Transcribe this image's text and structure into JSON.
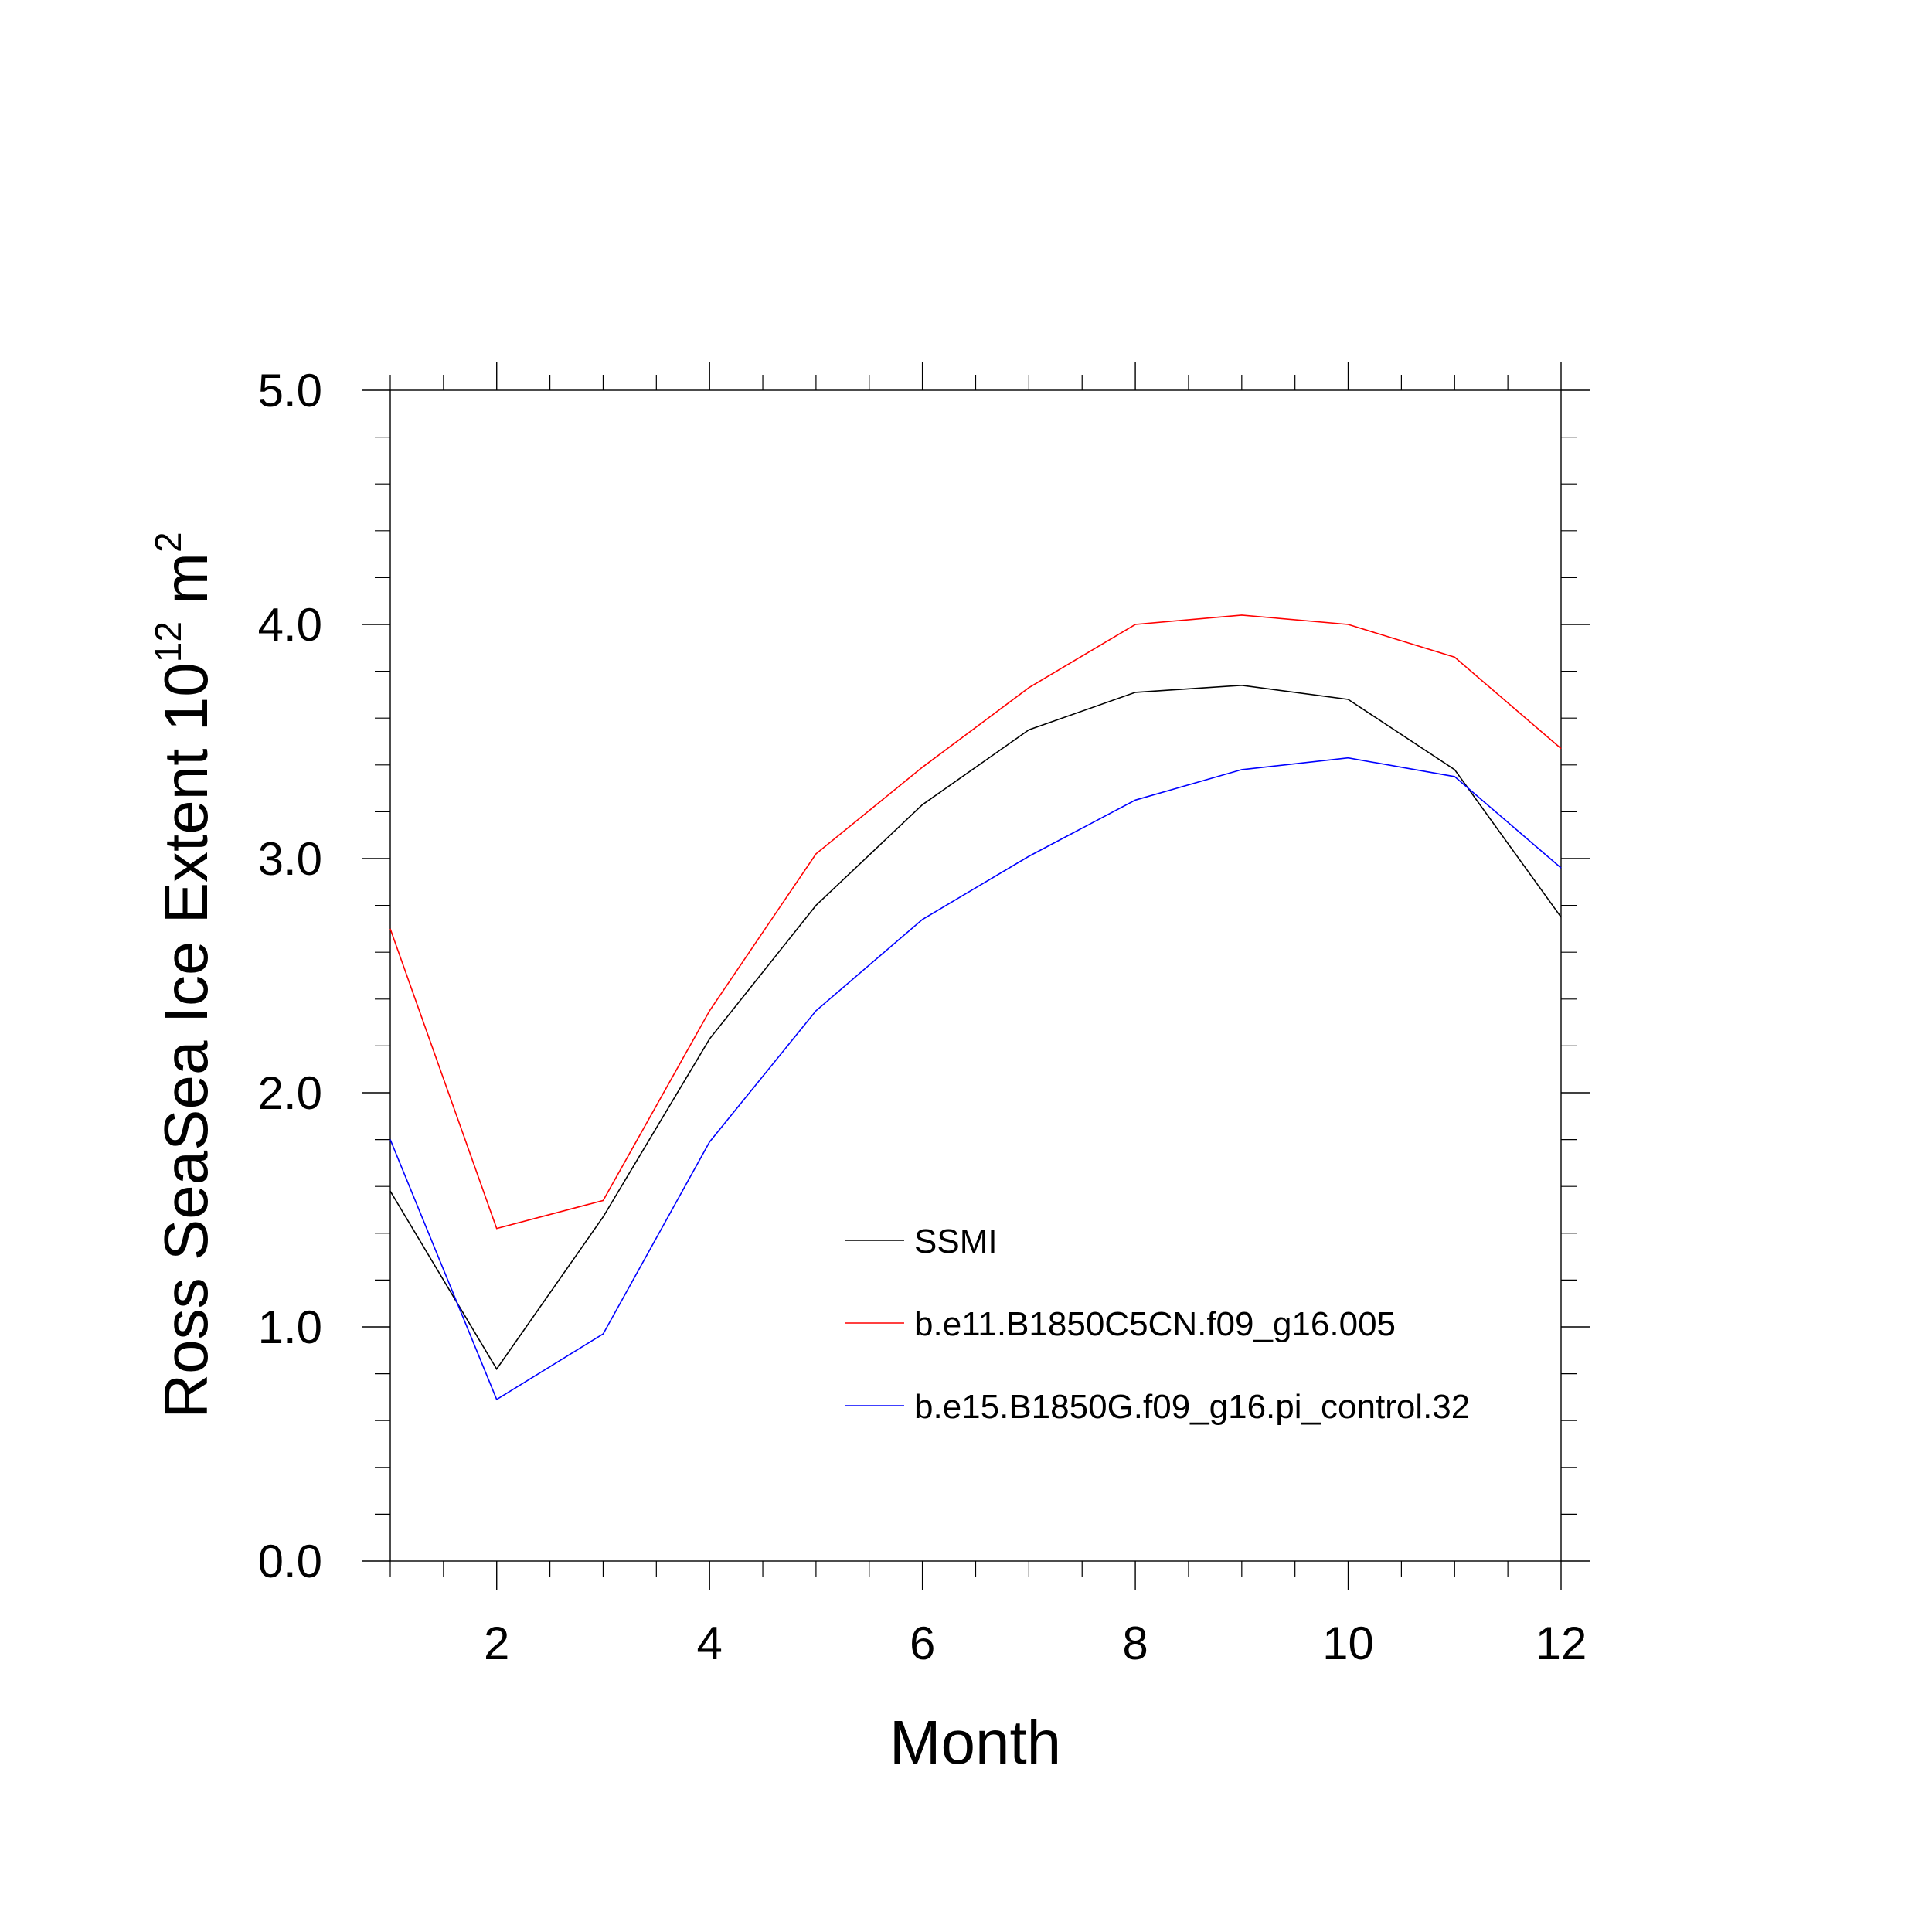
{
  "chart_data": {
    "type": "line",
    "xlabel": "Month",
    "ylabel": "Ross SeaSea Ice Extent 10",
    "ylabel_sup": "12",
    "ylabel_unit": " m",
    "ylabel_unit_sup": "2",
    "xlim": [
      1,
      12
    ],
    "ylim": [
      0,
      5
    ],
    "x_ticks": [
      2,
      4,
      6,
      8,
      10,
      12
    ],
    "x_tick_labels": [
      "2",
      "4",
      "6",
      "8",
      "10",
      "12"
    ],
    "y_ticks": [
      0,
      1,
      2,
      3,
      4,
      5
    ],
    "y_tick_labels": [
      "0.0",
      "1.0",
      "2.0",
      "3.0",
      "4.0",
      "5.0"
    ],
    "grid": false,
    "legend_position": "lower-right",
    "x": [
      1,
      2,
      3,
      4,
      5,
      6,
      7,
      8,
      9,
      10,
      11,
      12
    ],
    "series": [
      {
        "name": "SSMI",
        "color": "#000000",
        "values": [
          1.58,
          0.82,
          1.47,
          2.23,
          2.8,
          3.23,
          3.55,
          3.71,
          3.74,
          3.68,
          3.38,
          2.75
        ]
      },
      {
        "name": "b.e11.B1850C5CN.f09_g16.005",
        "color": "#ff0000",
        "values": [
          2.7,
          1.42,
          1.54,
          2.35,
          3.02,
          3.39,
          3.73,
          4.0,
          4.04,
          4.0,
          3.86,
          3.47
        ]
      },
      {
        "name": "b.e15.B1850G.f09_g16.pi_control.32",
        "color": "#0000ff",
        "values": [
          1.8,
          0.69,
          0.97,
          1.79,
          2.35,
          2.74,
          3.01,
          3.25,
          3.38,
          3.43,
          3.35,
          2.96
        ]
      }
    ]
  }
}
